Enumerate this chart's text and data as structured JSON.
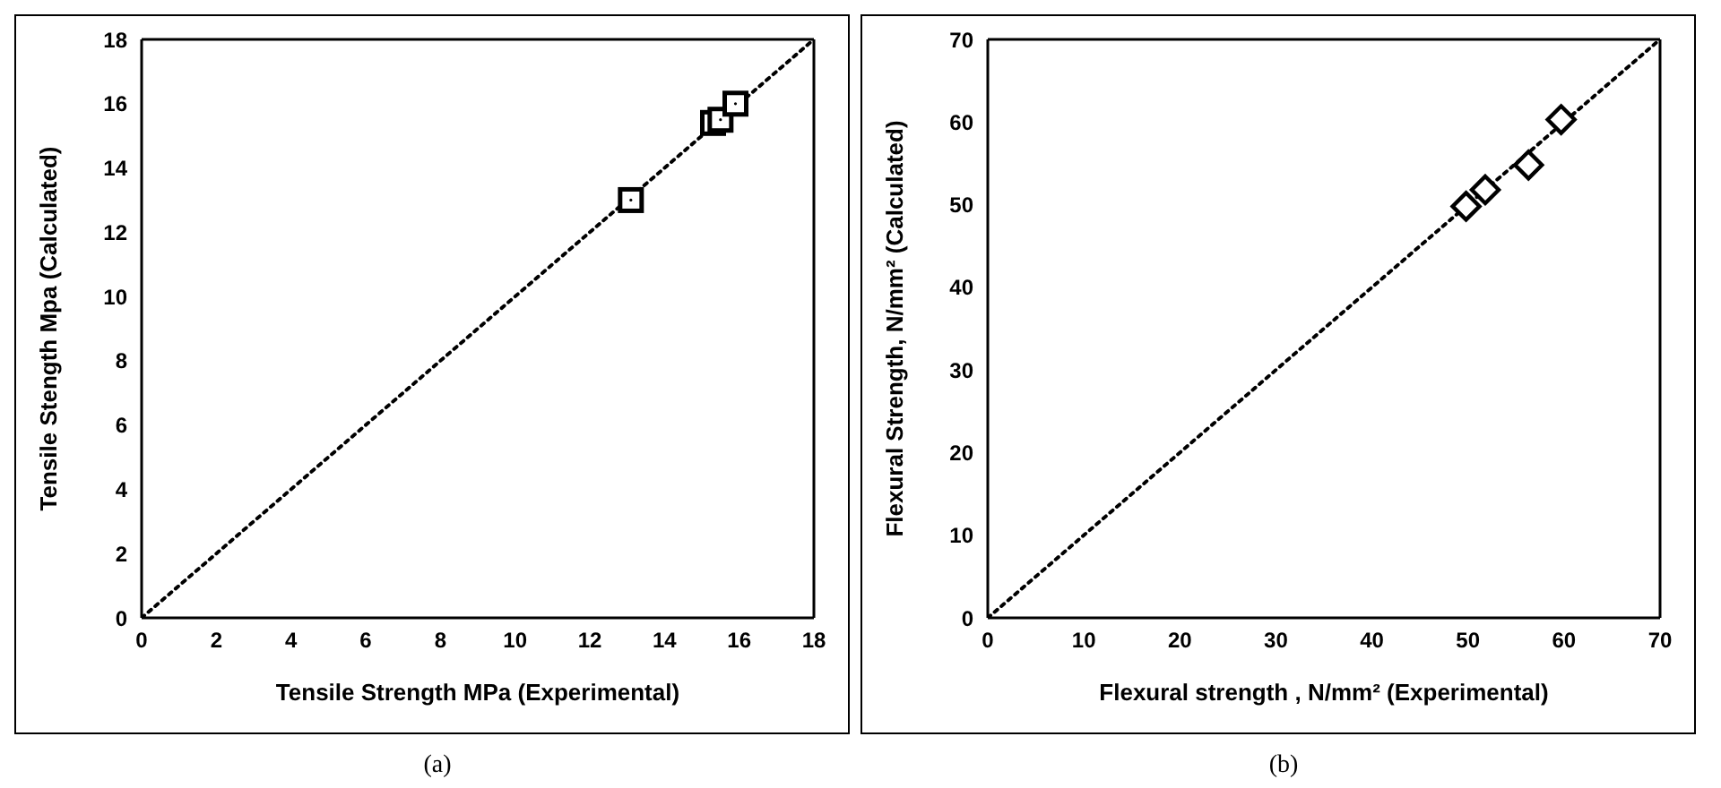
{
  "chart_data": [
    {
      "type": "scatter",
      "xlabel": "Tensile Strength MPa (Experimental)",
      "ylabel": "Tensile Stength Mpa (Calculated)",
      "marker": "square",
      "xlim": [
        0,
        18
      ],
      "ylim": [
        0,
        18
      ],
      "xticks": [
        0,
        2,
        4,
        6,
        8,
        10,
        12,
        14,
        16,
        18
      ],
      "yticks": [
        0,
        2,
        4,
        6,
        8,
        10,
        12,
        14,
        16,
        18
      ],
      "annotations": [
        "(a)"
      ],
      "series": [
        {
          "color": "#000000",
          "x": [
            13.1,
            15.3,
            15.5,
            15.9
          ],
          "values": [
            13.0,
            15.4,
            15.5,
            16.0
          ]
        },
        {
          "type": "line",
          "color": "#000000",
          "line_style": "dotted",
          "marker": "none",
          "x": [
            0,
            18
          ],
          "values": [
            0,
            18
          ]
        }
      ]
    },
    {
      "type": "scatter",
      "xlabel": "Flexural strength , N/mm² (Experimental)",
      "ylabel": "Flexural Strength, N/mm² (Calculated)",
      "marker": "diamond",
      "xlim": [
        0,
        70
      ],
      "ylim": [
        0,
        70
      ],
      "xticks": [
        0,
        10,
        20,
        30,
        40,
        50,
        60,
        70
      ],
      "yticks": [
        0,
        10,
        20,
        30,
        40,
        50,
        60,
        70
      ],
      "annotations": [
        "(b)"
      ],
      "series": [
        {
          "color": "#000000",
          "x": [
            49.8,
            51.8,
            56.3,
            59.7
          ],
          "values": [
            49.8,
            51.8,
            54.8,
            60.3
          ]
        },
        {
          "type": "line",
          "color": "#000000",
          "line_style": "dotted",
          "marker": "none",
          "x": [
            0,
            70
          ],
          "values": [
            0,
            70
          ]
        }
      ]
    }
  ]
}
